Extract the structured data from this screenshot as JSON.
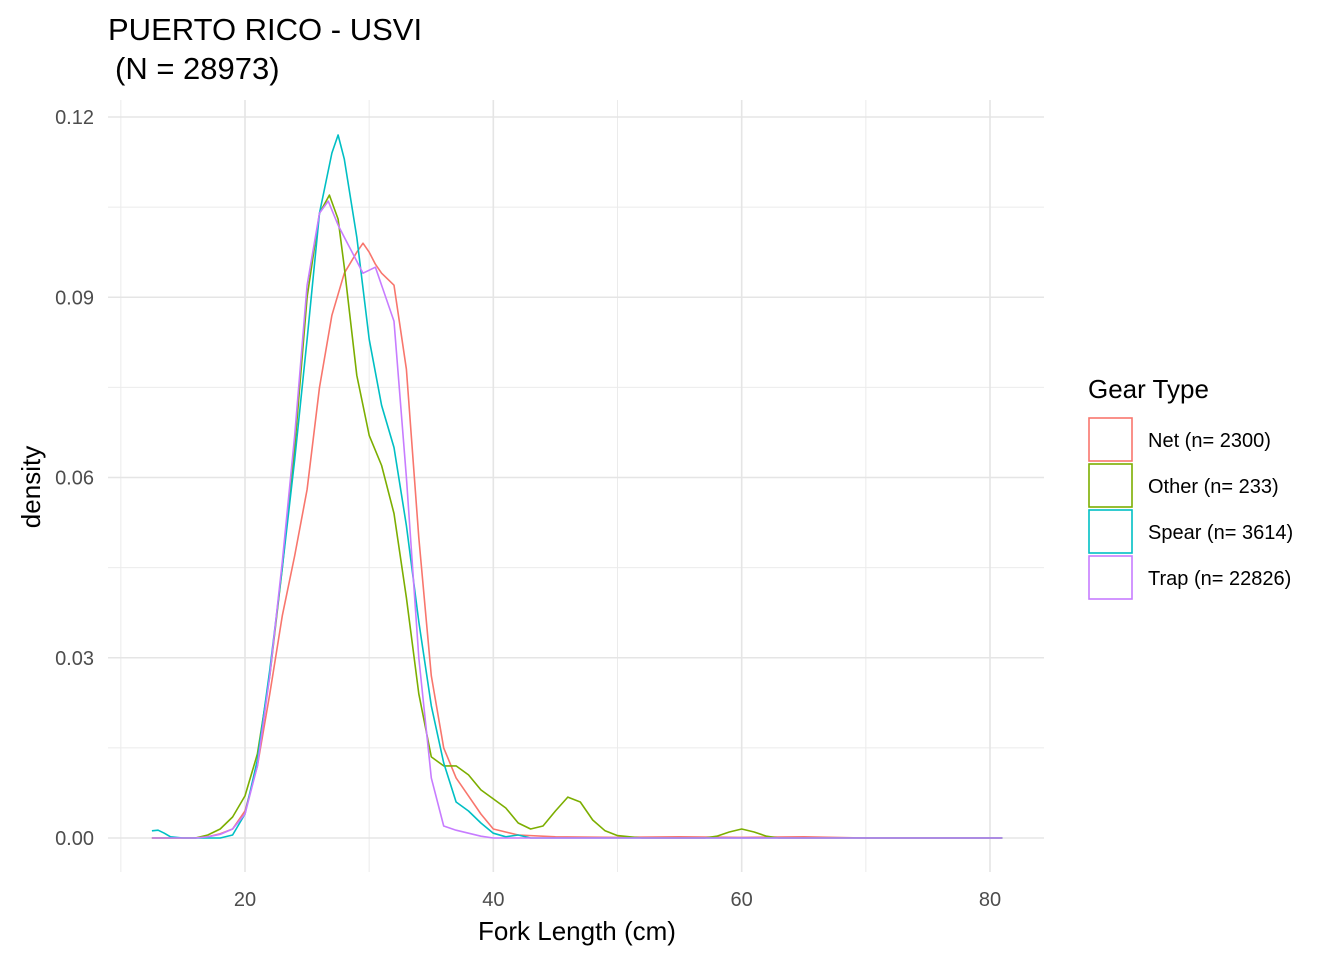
{
  "chart_data": {
    "type": "line",
    "title": "PUERTO RICO - USVI",
    "subtitle": "(N = 28973)",
    "xlabel": "Fork Length (cm)",
    "ylabel": "density",
    "xlim": [
      12.5,
      81
    ],
    "ylim": [
      -0.006,
      0.124
    ],
    "x_ticks": [
      20,
      40,
      60,
      80
    ],
    "y_ticks": [
      0.0,
      0.03,
      0.06,
      0.09,
      0.12
    ],
    "y_tick_labels": [
      "0.00",
      "0.03",
      "0.06",
      "0.09",
      "0.12"
    ],
    "grid": true,
    "legend": {
      "title": "Gear Type",
      "position": "right"
    },
    "series": [
      {
        "name": "Net (n= 2300)",
        "color": "#F8766D",
        "points": [
          [
            12.5,
            0
          ],
          [
            16,
            0
          ],
          [
            17,
            0.0002
          ],
          [
            18,
            0.0007
          ],
          [
            19,
            0.0015
          ],
          [
            20,
            0.0045
          ],
          [
            21,
            0.012
          ],
          [
            22,
            0.024
          ],
          [
            23,
            0.037
          ],
          [
            24,
            0.047
          ],
          [
            25,
            0.058
          ],
          [
            26,
            0.075
          ],
          [
            27,
            0.087
          ],
          [
            28,
            0.094
          ],
          [
            29,
            0.0975
          ],
          [
            29.5,
            0.099
          ],
          [
            30,
            0.0975
          ],
          [
            30.5,
            0.0955
          ],
          [
            31,
            0.094
          ],
          [
            32,
            0.092
          ],
          [
            33,
            0.078
          ],
          [
            34,
            0.05
          ],
          [
            35,
            0.027
          ],
          [
            36,
            0.015
          ],
          [
            37,
            0.01
          ],
          [
            38,
            0.007
          ],
          [
            39,
            0.004
          ],
          [
            40,
            0.0015
          ],
          [
            42,
            0.0005
          ],
          [
            45,
            0.0002
          ],
          [
            50,
            0.0001
          ],
          [
            55,
            0.0002
          ],
          [
            60,
            0.0001
          ],
          [
            65,
            0.0002
          ],
          [
            70,
            0
          ],
          [
            81,
            0
          ]
        ]
      },
      {
        "name": "Other (n= 233)",
        "color": "#7CAE00",
        "points": [
          [
            12.5,
            0
          ],
          [
            16,
            0
          ],
          [
            17,
            0.0005
          ],
          [
            18,
            0.0015
          ],
          [
            19,
            0.0035
          ],
          [
            20,
            0.007
          ],
          [
            21,
            0.014
          ],
          [
            22,
            0.027
          ],
          [
            23,
            0.045
          ],
          [
            24,
            0.065
          ],
          [
            25,
            0.09
          ],
          [
            26,
            0.104
          ],
          [
            26.8,
            0.107
          ],
          [
            27.5,
            0.103
          ],
          [
            28,
            0.095
          ],
          [
            29,
            0.077
          ],
          [
            30,
            0.067
          ],
          [
            31,
            0.062
          ],
          [
            32,
            0.054
          ],
          [
            33,
            0.04
          ],
          [
            34,
            0.024
          ],
          [
            35,
            0.0135
          ],
          [
            36,
            0.012
          ],
          [
            37,
            0.012
          ],
          [
            38,
            0.0105
          ],
          [
            39,
            0.008
          ],
          [
            40,
            0.0065
          ],
          [
            41,
            0.005
          ],
          [
            42,
            0.0025
          ],
          [
            43,
            0.0015
          ],
          [
            44,
            0.002
          ],
          [
            45,
            0.0045
          ],
          [
            46,
            0.0068
          ],
          [
            47,
            0.006
          ],
          [
            48,
            0.003
          ],
          [
            49,
            0.0012
          ],
          [
            50,
            0.0004
          ],
          [
            52,
            0
          ],
          [
            57,
            0
          ],
          [
            58,
            0.0003
          ],
          [
            59,
            0.001
          ],
          [
            60,
            0.0015
          ],
          [
            61,
            0.001
          ],
          [
            62,
            0.0003
          ],
          [
            63,
            0
          ],
          [
            81,
            0
          ]
        ]
      },
      {
        "name": "Spear (n= 3614)",
        "color": "#00BFC4",
        "points": [
          [
            12.5,
            0.0012
          ],
          [
            13,
            0.0013
          ],
          [
            13.5,
            0.0008
          ],
          [
            14,
            0.0002
          ],
          [
            15,
            0
          ],
          [
            17,
            0
          ],
          [
            18,
            0
          ],
          [
            19,
            0.0005
          ],
          [
            20,
            0.004
          ],
          [
            21,
            0.013
          ],
          [
            22,
            0.028
          ],
          [
            23,
            0.045
          ],
          [
            24,
            0.063
          ],
          [
            25,
            0.083
          ],
          [
            26,
            0.104
          ],
          [
            27,
            0.114
          ],
          [
            27.5,
            0.117
          ],
          [
            28,
            0.113
          ],
          [
            29,
            0.1
          ],
          [
            30,
            0.083
          ],
          [
            31,
            0.072
          ],
          [
            32,
            0.065
          ],
          [
            33,
            0.052
          ],
          [
            34,
            0.036
          ],
          [
            35,
            0.022
          ],
          [
            36,
            0.0125
          ],
          [
            37,
            0.006
          ],
          [
            38,
            0.0045
          ],
          [
            39,
            0.0025
          ],
          [
            40,
            0.0008
          ],
          [
            41,
            0.0002
          ],
          [
            42,
            0.0005
          ],
          [
            43,
            0
          ],
          [
            81,
            0
          ]
        ]
      },
      {
        "name": "Trap (n= 22826)",
        "color": "#C77CFF",
        "points": [
          [
            12.5,
            0
          ],
          [
            16,
            0
          ],
          [
            17,
            0.0002
          ],
          [
            18,
            0.0006
          ],
          [
            19,
            0.0015
          ],
          [
            20,
            0.004
          ],
          [
            21,
            0.012
          ],
          [
            22,
            0.027
          ],
          [
            23,
            0.046
          ],
          [
            24,
            0.067
          ],
          [
            25,
            0.092
          ],
          [
            26,
            0.104
          ],
          [
            26.7,
            0.106
          ],
          [
            27.5,
            0.102
          ],
          [
            28,
            0.1
          ],
          [
            29,
            0.096
          ],
          [
            29.5,
            0.094
          ],
          [
            30,
            0.0945
          ],
          [
            30.5,
            0.095
          ],
          [
            31,
            0.092
          ],
          [
            32,
            0.086
          ],
          [
            33,
            0.06
          ],
          [
            34,
            0.03
          ],
          [
            35,
            0.01
          ],
          [
            36,
            0.002
          ],
          [
            37,
            0.0013
          ],
          [
            38,
            0.0008
          ],
          [
            39,
            0.0003
          ],
          [
            40,
            0
          ],
          [
            81,
            0
          ]
        ]
      }
    ]
  }
}
